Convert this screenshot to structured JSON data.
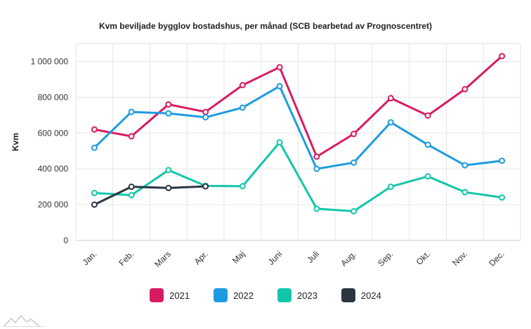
{
  "chart_data": {
    "type": "line",
    "title": "Kvm beviljade bygglov bostadshus, per månad (SCB bearbetad av Prognoscentret)",
    "ylabel": "Kvm",
    "xlabel": "",
    "categories": [
      "Jan.",
      "Feb.",
      "Mars",
      "Apr.",
      "Maj",
      "Juni",
      "Juli",
      "Aug.",
      "Sep.",
      "Okt.",
      "Nov.",
      "Dec."
    ],
    "ylim": [
      0,
      1100000
    ],
    "yticks": [
      0,
      200000,
      400000,
      600000,
      800000,
      1000000
    ],
    "ytick_labels": [
      "0",
      "200 000",
      "400 000",
      "600 000",
      "800 000",
      "1 000 000"
    ],
    "grid": true,
    "legend_position": "bottom",
    "series": [
      {
        "name": "2021",
        "color": "#d81b60",
        "values": [
          620000,
          582000,
          760000,
          718000,
          868000,
          968000,
          468000,
          595000,
          795000,
          698000,
          845000,
          1030000
        ]
      },
      {
        "name": "2022",
        "color": "#1e9be0",
        "values": [
          518000,
          718000,
          710000,
          688000,
          742000,
          862000,
          400000,
          435000,
          660000,
          535000,
          420000,
          445000
        ]
      },
      {
        "name": "2023",
        "color": "#13c6a9",
        "values": [
          265000,
          253000,
          393000,
          305000,
          303000,
          548000,
          177000,
          163000,
          300000,
          358000,
          270000,
          240000
        ]
      },
      {
        "name": "2024",
        "color": "#2b3542",
        "values": [
          200000,
          300000,
          293000,
          302000,
          null,
          null,
          null,
          null,
          null,
          null,
          null,
          null
        ]
      }
    ]
  },
  "logo": {
    "icon": "mountain-logo-icon",
    "color": "#cccccc"
  }
}
